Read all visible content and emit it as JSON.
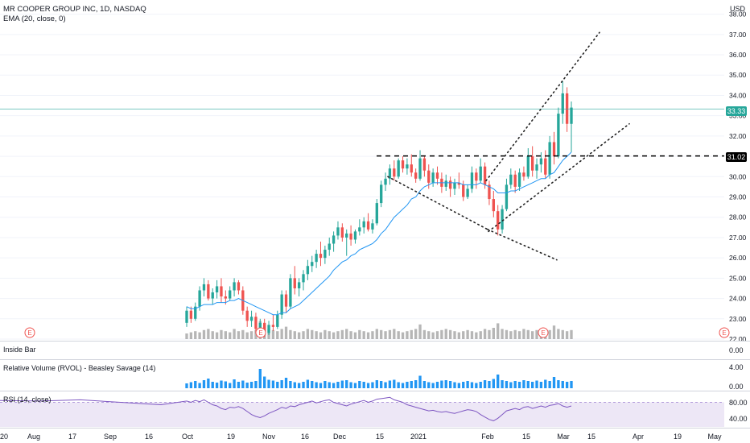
{
  "header": {
    "symbol": "MR COOPER GROUP INC, 1D, NASDAQ",
    "ema_label": "EMA (20, close, 0)",
    "currency": "USD"
  },
  "indicators": {
    "inside_bar": "Inside Bar",
    "inside_bar_value": "0.00",
    "rvol": "Relative Volume (RVOL) - Beasley Savage (14)",
    "rvol_ticks": [
      "4.00",
      "0.00"
    ],
    "rsi": "RSI (14, close)",
    "rsi_ticks": [
      "80.00",
      "40.00"
    ]
  },
  "price_tags": {
    "last": "33.33",
    "level": "31.02"
  },
  "earnings_marker": "E",
  "colors": {
    "up": "#26a69a",
    "down": "#ef5350",
    "neutral_bar": "#9e9e9e",
    "ema": "#2196f3",
    "rvol": "#2196f3",
    "rsi": "#7e57c2",
    "rsi_band": "#ede7f6",
    "last_line": "#26a69a",
    "level_line": "#000000"
  },
  "chart_data": {
    "type": "candlestick",
    "ylim": [
      22,
      38.5
    ],
    "y_ticks": [
      "38.00",
      "37.00",
      "36.00",
      "35.00",
      "34.00",
      "33.00",
      "32.00",
      "31.00",
      "30.00",
      "29.00",
      "28.00",
      "27.00",
      "26.00",
      "25.00",
      "24.00",
      "23.00",
      "22.00"
    ],
    "x_ticks": [
      "20",
      "Aug",
      "17",
      "Sep",
      "16",
      "Oct",
      "19",
      "Nov",
      "16",
      "Dec",
      "15",
      "2021",
      "Feb",
      "15",
      "Mar",
      "15",
      "Apr",
      "19",
      "May"
    ],
    "last_price": 33.33,
    "horizontal_level": 31.02,
    "ohlc": [
      [
        22.8,
        23.6,
        22.6,
        23.4
      ],
      [
        23.4,
        23.6,
        22.8,
        23.0
      ],
      [
        23.0,
        23.8,
        22.9,
        23.6
      ],
      [
        23.6,
        24.6,
        23.4,
        24.4
      ],
      [
        24.4,
        25.0,
        24.1,
        24.7
      ],
      [
        24.7,
        24.9,
        23.9,
        24.0
      ],
      [
        24.0,
        24.5,
        23.7,
        24.3
      ],
      [
        24.3,
        24.9,
        24.0,
        24.6
      ],
      [
        24.6,
        25.0,
        23.8,
        24.1
      ],
      [
        24.1,
        24.4,
        23.7,
        24.0
      ],
      [
        24.0,
        24.6,
        23.9,
        24.4
      ],
      [
        24.4,
        25.0,
        24.1,
        24.8
      ],
      [
        24.8,
        24.9,
        24.2,
        24.4
      ],
      [
        24.4,
        24.6,
        23.2,
        23.4
      ],
      [
        23.4,
        23.6,
        22.6,
        22.9
      ],
      [
        22.9,
        23.4,
        22.6,
        23.1
      ],
      [
        23.1,
        23.3,
        22.3,
        22.5
      ],
      [
        22.5,
        23.0,
        22.1,
        22.8
      ],
      [
        22.8,
        23.0,
        22.1,
        22.3
      ],
      [
        22.3,
        22.9,
        22.2,
        22.7
      ],
      [
        22.7,
        23.2,
        22.4,
        22.6
      ],
      [
        22.6,
        23.4,
        22.5,
        23.2
      ],
      [
        23.2,
        24.4,
        23.0,
        24.2
      ],
      [
        24.2,
        24.4,
        23.3,
        23.6
      ],
      [
        23.6,
        25.2,
        23.5,
        25.0
      ],
      [
        25.0,
        25.6,
        24.2,
        24.5
      ],
      [
        24.5,
        25.0,
        24.1,
        24.8
      ],
      [
        24.8,
        25.4,
        24.4,
        25.2
      ],
      [
        25.2,
        25.9,
        24.9,
        25.6
      ],
      [
        25.6,
        26.1,
        25.3,
        25.8
      ],
      [
        25.8,
        26.4,
        25.5,
        26.2
      ],
      [
        26.2,
        26.8,
        25.6,
        26.0
      ],
      [
        26.0,
        26.6,
        25.7,
        26.4
      ],
      [
        26.4,
        27.0,
        26.1,
        26.7
      ],
      [
        26.7,
        27.3,
        26.3,
        27.1
      ],
      [
        27.1,
        27.8,
        26.9,
        27.5
      ],
      [
        27.5,
        27.7,
        26.8,
        27.0
      ],
      [
        27.0,
        27.4,
        26.1,
        27.2
      ],
      [
        27.2,
        27.6,
        26.6,
        26.9
      ],
      [
        26.9,
        27.4,
        26.7,
        27.3
      ],
      [
        27.3,
        27.9,
        27.1,
        27.5
      ],
      [
        27.5,
        28.0,
        27.2,
        27.8
      ],
      [
        27.8,
        28.2,
        27.3,
        27.4
      ],
      [
        27.4,
        27.9,
        27.2,
        27.7
      ],
      [
        27.7,
        28.9,
        27.6,
        28.7
      ],
      [
        28.7,
        29.8,
        28.5,
        29.6
      ],
      [
        29.6,
        30.2,
        29.3,
        29.9
      ],
      [
        29.9,
        30.6,
        29.6,
        30.4
      ],
      [
        30.4,
        30.8,
        29.8,
        30.0
      ],
      [
        30.0,
        30.9,
        29.9,
        30.8
      ],
      [
        30.8,
        31.0,
        30.2,
        30.4
      ],
      [
        30.4,
        30.9,
        30.1,
        30.6
      ],
      [
        30.6,
        31.1,
        30.0,
        30.2
      ],
      [
        30.2,
        30.4,
        29.7,
        29.9
      ],
      [
        29.9,
        31.3,
        29.8,
        30.9
      ],
      [
        30.9,
        31.0,
        30.0,
        30.3
      ],
      [
        30.3,
        30.6,
        29.4,
        29.7
      ],
      [
        29.7,
        30.4,
        29.5,
        30.2
      ],
      [
        30.2,
        30.5,
        29.6,
        29.9
      ],
      [
        29.9,
        30.2,
        29.2,
        29.5
      ],
      [
        29.5,
        30.1,
        29.3,
        29.8
      ],
      [
        29.8,
        30.0,
        29.0,
        29.4
      ],
      [
        29.4,
        29.9,
        29.1,
        29.7
      ],
      [
        29.7,
        30.2,
        29.4,
        29.6
      ],
      [
        29.6,
        29.8,
        28.8,
        29.0
      ],
      [
        29.0,
        29.6,
        28.9,
        29.4
      ],
      [
        29.4,
        30.5,
        29.2,
        30.2
      ],
      [
        30.2,
        30.4,
        29.4,
        29.8
      ],
      [
        29.8,
        30.9,
        29.7,
        30.5
      ],
      [
        30.5,
        30.7,
        29.4,
        29.6
      ],
      [
        29.6,
        29.8,
        28.6,
        28.9
      ],
      [
        28.9,
        29.3,
        28.0,
        28.3
      ],
      [
        28.3,
        28.6,
        27.1,
        27.4
      ],
      [
        27.4,
        28.6,
        27.2,
        28.4
      ],
      [
        28.4,
        29.9,
        28.3,
        29.6
      ],
      [
        29.6,
        30.4,
        29.4,
        30.1
      ],
      [
        30.1,
        30.3,
        29.2,
        29.5
      ],
      [
        29.5,
        30.4,
        29.3,
        30.2
      ],
      [
        30.2,
        30.5,
        29.8,
        30.0
      ],
      [
        30.0,
        31.4,
        29.9,
        31.0
      ],
      [
        31.0,
        31.5,
        30.0,
        30.3
      ],
      [
        30.3,
        30.9,
        29.9,
        30.6
      ],
      [
        30.6,
        31.2,
        30.2,
        30.9
      ],
      [
        30.9,
        31.3,
        29.9,
        30.1
      ],
      [
        30.1,
        32.0,
        29.9,
        31.7
      ],
      [
        31.7,
        32.2,
        30.6,
        31.0
      ],
      [
        31.0,
        33.4,
        30.9,
        33.1
      ],
      [
        33.1,
        34.7,
        32.6,
        34.1
      ],
      [
        34.1,
        34.4,
        32.2,
        32.6
      ],
      [
        32.6,
        33.7,
        31.2,
        33.4
      ]
    ],
    "ema20": [
      23.6,
      23.5,
      23.5,
      23.6,
      23.7,
      23.7,
      23.7,
      23.8,
      23.8,
      23.8,
      23.9,
      23.9,
      24.0,
      23.9,
      23.8,
      23.7,
      23.6,
      23.5,
      23.4,
      23.3,
      23.2,
      23.2,
      23.3,
      23.3,
      23.5,
      23.6,
      23.7,
      23.9,
      24.1,
      24.3,
      24.5,
      24.7,
      24.9,
      25.1,
      25.4,
      25.6,
      25.8,
      25.9,
      26.1,
      26.2,
      26.4,
      26.5,
      26.6,
      26.7,
      26.9,
      27.2,
      27.4,
      27.7,
      28.0,
      28.2,
      28.4,
      28.6,
      28.9,
      29.0,
      29.3,
      29.5,
      29.6,
      29.7,
      29.7,
      29.7,
      29.7,
      29.7,
      29.7,
      29.7,
      29.6,
      29.6,
      29.6,
      29.6,
      29.7,
      29.6,
      29.5,
      29.4,
      29.2,
      29.2,
      29.2,
      29.3,
      29.3,
      29.4,
      29.5,
      29.6,
      29.7,
      29.8,
      29.9,
      29.9,
      30.1,
      30.2,
      30.5,
      30.8,
      31.0,
      31.2
    ],
    "volume": [
      0.5,
      0.6,
      0.7,
      0.6,
      0.8,
      0.9,
      0.7,
      0.6,
      0.8,
      0.7,
      0.6,
      0.9,
      0.7,
      0.8,
      0.6,
      0.7,
      0.8,
      1.6,
      1.2,
      0.9,
      0.8,
      0.7,
      0.9,
      1.1,
      0.8,
      0.7,
      0.6,
      0.7,
      0.9,
      0.8,
      0.7,
      0.6,
      0.8,
      0.7,
      0.6,
      0.7,
      0.8,
      0.9,
      0.7,
      0.6,
      0.8,
      0.7,
      0.6,
      0.7,
      0.9,
      0.8,
      0.7,
      0.8,
      0.9,
      0.7,
      0.6,
      0.7,
      0.8,
      0.9,
      1.3,
      0.8,
      0.7,
      0.6,
      0.7,
      0.8,
      0.9,
      0.8,
      0.7,
      0.6,
      0.7,
      0.8,
      0.7,
      0.6,
      0.7,
      0.9,
      0.8,
      1.0,
      1.4,
      0.9,
      0.8,
      0.7,
      0.8,
      0.7,
      0.9,
      0.8,
      0.7,
      0.8,
      0.7,
      0.9,
      0.8,
      1.2,
      0.9,
      0.8,
      0.7,
      0.8
    ],
    "rvol": [
      1.2,
      1.5,
      1.8,
      1.3,
      2.0,
      2.4,
      1.6,
      1.4,
      1.9,
      1.7,
      1.3,
      2.2,
      1.6,
      1.9,
      1.4,
      1.6,
      1.8,
      4.8,
      2.9,
      2.1,
      1.9,
      1.6,
      2.0,
      2.6,
      1.8,
      1.5,
      1.3,
      1.6,
      2.1,
      1.8,
      1.5,
      1.3,
      1.8,
      1.5,
      1.3,
      1.6,
      1.9,
      2.0,
      1.5,
      1.3,
      1.8,
      1.6,
      1.3,
      1.5,
      2.0,
      1.8,
      1.5,
      1.9,
      2.1,
      1.5,
      1.3,
      1.6,
      1.8,
      2.0,
      3.1,
      1.8,
      1.5,
      1.3,
      1.6,
      1.9,
      2.0,
      1.8,
      1.5,
      1.3,
      1.6,
      1.8,
      1.5,
      1.3,
      1.6,
      2.0,
      1.8,
      2.3,
      3.4,
      2.0,
      1.8,
      1.5,
      1.8,
      1.6,
      2.0,
      1.8,
      1.6,
      1.9,
      1.6,
      2.1,
      1.8,
      2.8,
      2.0,
      1.8,
      1.6,
      1.8
    ],
    "rsi": [
      72,
      70,
      73,
      71,
      74,
      70,
      66,
      64,
      60,
      58,
      62,
      61,
      63,
      60,
      55,
      50,
      47,
      45,
      48,
      52,
      55,
      58,
      62,
      60,
      64,
      63,
      66,
      68,
      70,
      72,
      69,
      71,
      73,
      74,
      70,
      68,
      66,
      64,
      67,
      69,
      71,
      73,
      70,
      72,
      75,
      76,
      77,
      78,
      74,
      72,
      70,
      66,
      64,
      62,
      60,
      58,
      56,
      57,
      55,
      54,
      55,
      53,
      52,
      54,
      56,
      58,
      57,
      55,
      50,
      46,
      42,
      40,
      44,
      50,
      56,
      58,
      60,
      58,
      62,
      63,
      60,
      62,
      64,
      62,
      65,
      66,
      68,
      64,
      62,
      64
    ]
  }
}
